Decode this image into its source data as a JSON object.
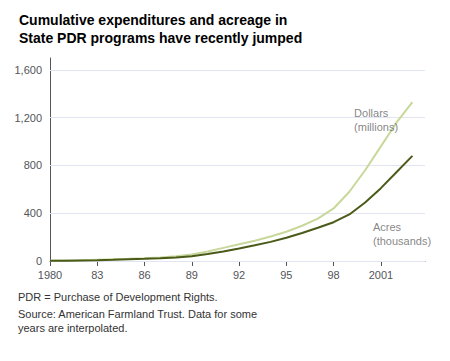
{
  "chart_data": {
    "type": "line",
    "title": "Cumulative expenditures and acreage in\nState PDR programs have recently jumped",
    "x": [
      1980,
      1981,
      1982,
      1983,
      1984,
      1985,
      1986,
      1987,
      1988,
      1989,
      1990,
      1991,
      1992,
      1993,
      1994,
      1995,
      1996,
      1997,
      1998,
      1999,
      2000,
      2001,
      2002,
      2003
    ],
    "series": [
      {
        "name": "Dollars\n(millions)",
        "color": "#c8d89a",
        "values": [
          2,
          4,
          6,
          10,
          14,
          18,
          23,
          30,
          40,
          55,
          80,
          110,
          140,
          170,
          205,
          245,
          295,
          355,
          440,
          580,
          760,
          960,
          1160,
          1330
        ]
      },
      {
        "name": "Acres\n(thousands)",
        "color": "#4a5a18",
        "values": [
          2,
          3,
          5,
          7,
          10,
          14,
          18,
          23,
          30,
          40,
          58,
          80,
          105,
          132,
          160,
          195,
          235,
          278,
          325,
          390,
          490,
          610,
          745,
          880
        ]
      }
    ],
    "xlim": [
      1980,
      2003.8
    ],
    "xticks": [
      1980,
      {
        "value": 1983,
        "label": "83"
      },
      {
        "value": 1986,
        "label": "86"
      },
      {
        "value": 1989,
        "label": "89"
      },
      {
        "value": 1992,
        "label": "92"
      },
      {
        "value": 1995,
        "label": "95"
      },
      {
        "value": 1998,
        "label": "98"
      },
      2001
    ],
    "ylim": [
      0,
      1700
    ],
    "yticks": [
      0,
      400,
      800,
      {
        "value": 1200,
        "label": "1,200"
      },
      {
        "value": 1600,
        "label": "1,600"
      }
    ],
    "grid": true,
    "annotations": [
      {
        "text": "Dollars\n(millions)",
        "x": 1999.3,
        "y": 1060
      },
      {
        "text": "Acres\n(thousands)",
        "x": 2000.5,
        "y": 340
      }
    ],
    "footnotes": [
      "PDR = Purchase of Development Rights.",
      "Source: American Farmland Trust. Data for some\nyears are interpolated."
    ]
  }
}
